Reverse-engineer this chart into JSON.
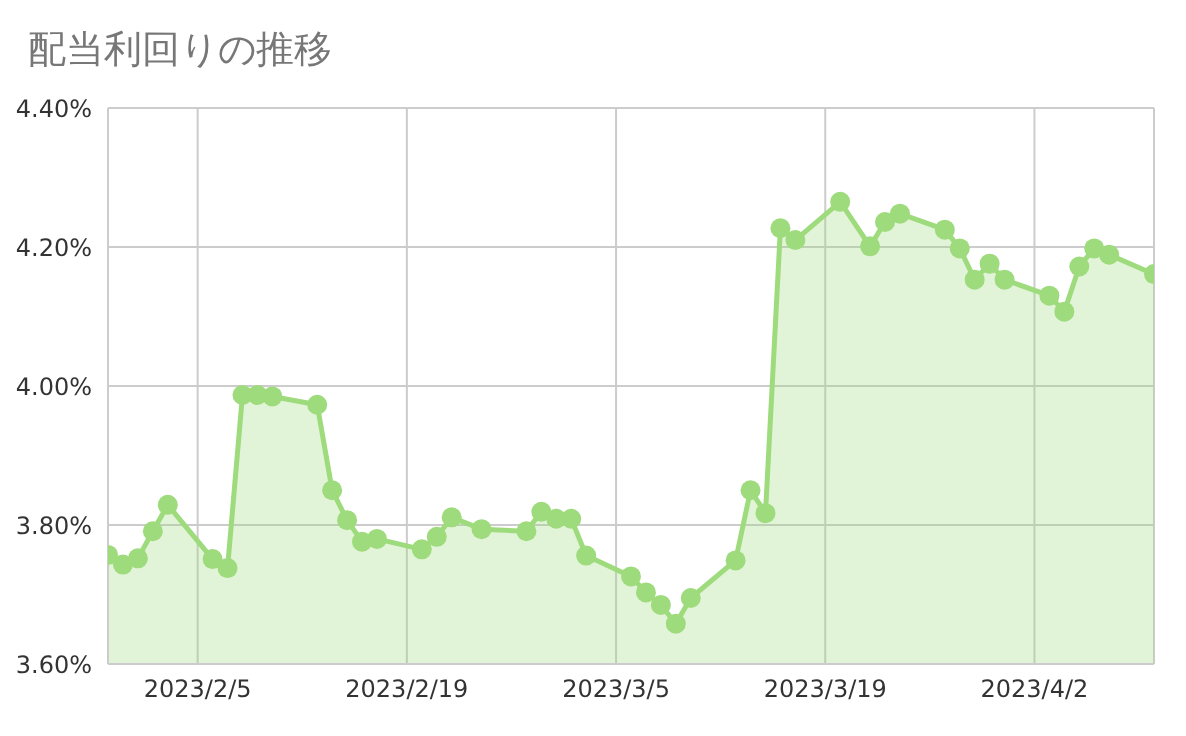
{
  "chart_data": {
    "type": "area",
    "title": "配当利回りの推移",
    "x": [
      "2023-01-30",
      "2023-01-31",
      "2023-02-01",
      "2023-02-02",
      "2023-02-03",
      "2023-02-06",
      "2023-02-07",
      "2023-02-08",
      "2023-02-09",
      "2023-02-10",
      "2023-02-13",
      "2023-02-14",
      "2023-02-15",
      "2023-02-16",
      "2023-02-17",
      "2023-02-20",
      "2023-02-21",
      "2023-02-22",
      "2023-02-24",
      "2023-02-27",
      "2023-02-28",
      "2023-03-01",
      "2023-03-02",
      "2023-03-03",
      "2023-03-06",
      "2023-03-07",
      "2023-03-08",
      "2023-03-09",
      "2023-03-10",
      "2023-03-13",
      "2023-03-14",
      "2023-03-15",
      "2023-03-16",
      "2023-03-17",
      "2023-03-20",
      "2023-03-22",
      "2023-03-23",
      "2023-03-24",
      "2023-03-27",
      "2023-03-28",
      "2023-03-29",
      "2023-03-30",
      "2023-03-31",
      "2023-04-03",
      "2023-04-04",
      "2023-04-05",
      "2023-04-06",
      "2023-04-07",
      "2023-04-10"
    ],
    "series": [
      {
        "color": "#9edb7c",
        "values": [
          3.757,
          3.743,
          3.752,
          3.791,
          3.829,
          3.751,
          3.738,
          3.987,
          3.987,
          3.985,
          3.973,
          3.85,
          3.807,
          3.776,
          3.78,
          3.765,
          3.783,
          3.811,
          3.794,
          3.791,
          3.819,
          3.809,
          3.809,
          3.756,
          3.726,
          3.703,
          3.685,
          3.658,
          3.695,
          3.749,
          3.85,
          3.817,
          4.227,
          4.21,
          4.265,
          4.201,
          4.236,
          4.248,
          4.225,
          4.198,
          4.153,
          4.176,
          4.153,
          4.13,
          4.107,
          4.172,
          4.198,
          4.189,
          4.161
        ]
      }
    ],
    "xlim": [
      "2023-01-30",
      "2023-04-10"
    ],
    "xticks": [
      {
        "value": "2023-02-05",
        "label": "2023/2/5"
      },
      {
        "value": "2023-02-19",
        "label": "2023/2/19"
      },
      {
        "value": "2023-03-05",
        "label": "2023/3/5"
      },
      {
        "value": "2023-03-19",
        "label": "2023/3/19"
      },
      {
        "value": "2023-04-02",
        "label": "2023/4/2"
      }
    ],
    "ylim": [
      3.6,
      4.4
    ],
    "yticks": [
      {
        "value": 3.6,
        "label": "3.60%"
      },
      {
        "value": 3.8,
        "label": "3.80%"
      },
      {
        "value": 4.0,
        "label": "4.00%"
      },
      {
        "value": 4.2,
        "label": "4.20%"
      },
      {
        "value": 4.4,
        "label": "4.40%"
      }
    ],
    "grid": true,
    "marker": "circle",
    "line_style": "solid"
  }
}
